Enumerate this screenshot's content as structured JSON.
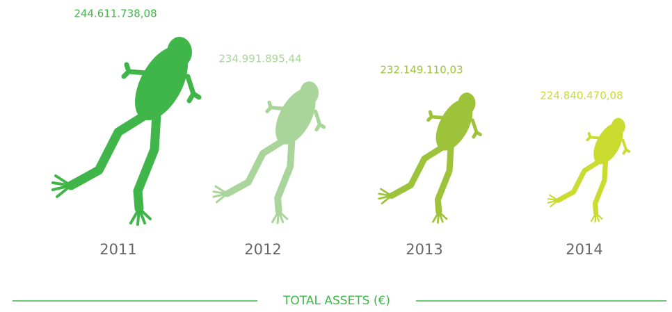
{
  "chart_data": {
    "type": "pictograph",
    "title": "TOTAL ASSETS (€)",
    "categories": [
      "2011",
      "2012",
      "2013",
      "2014"
    ],
    "values": [
      244611738.08,
      234991895.44,
      232149110.03,
      224840470.08
    ],
    "value_labels": [
      "244.611.738,08",
      "234.991.895,44",
      "232.149.110,03",
      "224.840.470,08"
    ],
    "colors": [
      "#40b64a",
      "#a9d59b",
      "#9dc33b",
      "#c9dc2f"
    ]
  }
}
